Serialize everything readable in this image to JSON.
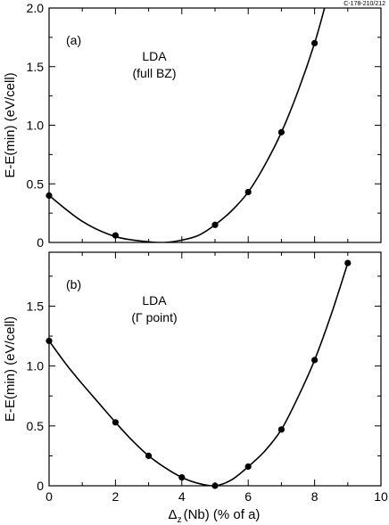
{
  "figure_id": "C-178-210/212",
  "xlabel_main": "Δ",
  "xlabel_sub": "z",
  "xlabel_rest": "(Nb)  (% of a)",
  "chart_data": [
    {
      "type": "scatter",
      "panel_label": "(a)",
      "annotation": [
        "LDA",
        "(full BZ)"
      ],
      "ylabel": "E-E(min)  (eV/cell)",
      "xlim": [
        0,
        10
      ],
      "ylim": [
        0,
        2.0
      ],
      "x_ticks": [
        0,
        2,
        4,
        6,
        8,
        10
      ],
      "y_ticks": [
        0,
        0.5,
        1.0,
        1.5,
        2.0
      ],
      "y_tick_labels": [
        "0",
        "0.5",
        "1.0",
        "1.5",
        "2.0"
      ],
      "x_tick_labels_shown": false,
      "series": [
        {
          "x": [
            0,
            2,
            5,
            6,
            7,
            8
          ],
          "y": [
            0.4,
            0.06,
            0.15,
            0.43,
            0.94,
            1.7
          ]
        }
      ],
      "fit_curve": [
        [
          0,
          0.4
        ],
        [
          1,
          0.18
        ],
        [
          2,
          0.05
        ],
        [
          3,
          0.005
        ],
        [
          3.5,
          0.0
        ],
        [
          4,
          0.02
        ],
        [
          4.5,
          0.06
        ],
        [
          5,
          0.15
        ],
        [
          5.5,
          0.27
        ],
        [
          6,
          0.43
        ],
        [
          6.5,
          0.66
        ],
        [
          7,
          0.94
        ],
        [
          7.5,
          1.29
        ],
        [
          8,
          1.7
        ],
        [
          8.3,
          2.0
        ]
      ]
    },
    {
      "type": "scatter",
      "panel_label": "(b)",
      "annotation": [
        "LDA",
        "(Γ point)"
      ],
      "ylabel": "E-E(min)  (eV/cell)",
      "xlim": [
        0,
        10
      ],
      "ylim": [
        0,
        1.95
      ],
      "x_ticks": [
        0,
        2,
        4,
        6,
        8,
        10
      ],
      "y_ticks": [
        0,
        0.5,
        1.0,
        1.5
      ],
      "y_tick_labels": [
        "0",
        "0.5",
        "1.0",
        "1.5"
      ],
      "x_tick_labels_shown": true,
      "series": [
        {
          "x": [
            0,
            2,
            3,
            4,
            5,
            6,
            7,
            8,
            9
          ],
          "y": [
            1.21,
            0.53,
            0.25,
            0.07,
            0.0,
            0.16,
            0.47,
            1.05,
            1.86
          ]
        }
      ],
      "fit_curve": [
        [
          0,
          1.21
        ],
        [
          0.5,
          1.02
        ],
        [
          1,
          0.85
        ],
        [
          1.5,
          0.69
        ],
        [
          2,
          0.53
        ],
        [
          2.5,
          0.38
        ],
        [
          3,
          0.25
        ],
        [
          3.5,
          0.15
        ],
        [
          4,
          0.07
        ],
        [
          4.5,
          0.02
        ],
        [
          5,
          0.0
        ],
        [
          5.5,
          0.05
        ],
        [
          6,
          0.16
        ],
        [
          6.5,
          0.29
        ],
        [
          7,
          0.47
        ],
        [
          7.5,
          0.74
        ],
        [
          8,
          1.05
        ],
        [
          8.5,
          1.43
        ],
        [
          9,
          1.86
        ]
      ]
    }
  ]
}
